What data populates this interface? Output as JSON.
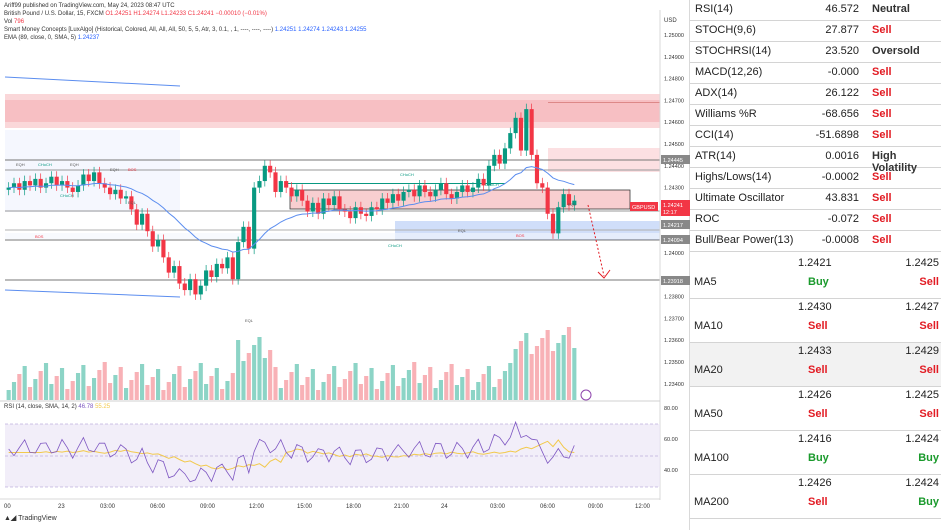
{
  "header": {
    "published": "Ariff99 published on TradingView.com, May 24, 2023 08:47 UTC",
    "symbol": "British Pound / U.S. Dollar, 15, FXCM",
    "ohlc": "O1.24251 H1.24274 L1.24233 C1.24241 −0.00010 (−0.01%)",
    "vol_label": "Vol",
    "vol_value": "796",
    "smc": "Smart Money Concepts [LuxAlgo] (Historical, Colored, All, All, All, 50, 5, 5, Atr, 3, 0.1, , 1, ----, ----, ----)",
    "smc_values": "1.24251  1.24274  1.24243  1.24255",
    "ema": "EMA (89, close, 0, SMA, 5)",
    "ema_value": "1.24237",
    "rsi": "RSI (14, close, SMA, 14, 2)",
    "rsi_value": "46.78",
    "rsi_value2": "55.25"
  },
  "axis": {
    "currency": "USD",
    "price_ticks": [
      "1.25000",
      "1.24900",
      "1.24800",
      "1.24700",
      "1.24600",
      "1.24500",
      "1.24400",
      "1.24300",
      "1.24200",
      "1.24000",
      "1.23800",
      "1.23700",
      "1.23600",
      "1.23500",
      "1.23400"
    ],
    "price_labels": [
      {
        "text": "1.24445",
        "kind": "gray"
      },
      {
        "text": "GBPUSD",
        "kind": "red"
      },
      {
        "text": "1.24241",
        "kind": "red"
      },
      {
        "text": "12:17",
        "kind": "red"
      },
      {
        "text": "1.24217",
        "kind": "gray"
      },
      {
        "text": "1.24094",
        "kind": "gray"
      },
      {
        "text": "1.23918",
        "kind": "gray"
      }
    ],
    "rsi_ticks": [
      "80.00",
      "60.00",
      "40.00"
    ],
    "time_ticks": [
      "00",
      "23",
      "03:00",
      "06:00",
      "09:00",
      "12:00",
      "15:00",
      "18:00",
      "21:00",
      "24",
      "03:00",
      "06:00",
      "09:00",
      "12:00"
    ]
  },
  "annotations": [
    "EQH",
    "CHoCH",
    "EQH",
    "BOS",
    "CHoCH",
    "EQH",
    "BOS",
    "EQL",
    "EQL",
    "CHoCH",
    "EQL",
    "BOS",
    "CHoCH",
    "CHoCH",
    "EQL"
  ],
  "tradingview_label": "TradingView",
  "indicators": [
    {
      "name": "RSI(14)",
      "value": "46.572",
      "action": "Neutral",
      "type": "neutral"
    },
    {
      "name": "STOCH(9,6)",
      "value": "27.877",
      "action": "Sell",
      "type": "sell"
    },
    {
      "name": "STOCHRSI(14)",
      "value": "23.520",
      "action": "Oversold",
      "type": "neutral"
    },
    {
      "name": "MACD(12,26)",
      "value": "-0.000",
      "action": "Sell",
      "type": "sell"
    },
    {
      "name": "ADX(14)",
      "value": "26.122",
      "action": "Sell",
      "type": "sell"
    },
    {
      "name": "Williams %R",
      "value": "-68.656",
      "action": "Sell",
      "type": "sell"
    },
    {
      "name": "CCI(14)",
      "value": "-51.6898",
      "action": "Sell",
      "type": "sell"
    },
    {
      "name": "ATR(14)",
      "value": "0.0016",
      "action": "High Volatility",
      "type": "neutral"
    },
    {
      "name": "Highs/Lows(14)",
      "value": "-0.0002",
      "action": "Sell",
      "type": "sell"
    },
    {
      "name": "Ultimate Oscillator",
      "value": "43.831",
      "action": "Sell",
      "type": "sell"
    },
    {
      "name": "ROC",
      "value": "-0.072",
      "action": "Sell",
      "type": "sell"
    },
    {
      "name": "Bull/Bear Power(13)",
      "value": "-0.0008",
      "action": "Sell",
      "type": "sell"
    }
  ],
  "moving_averages": [
    {
      "name": "MA5",
      "v1": "1.2421",
      "a1": "Buy",
      "t1": "buy",
      "v2": "1.2425",
      "a2": "Sell",
      "t2": "sell"
    },
    {
      "name": "MA10",
      "v1": "1.2430",
      "a1": "Sell",
      "t1": "sell",
      "v2": "1.2427",
      "a2": "Sell",
      "t2": "sell"
    },
    {
      "name": "MA20",
      "v1": "1.2433",
      "a1": "Sell",
      "t1": "sell",
      "v2": "1.2429",
      "a2": "Sell",
      "t2": "sell"
    },
    {
      "name": "MA50",
      "v1": "1.2426",
      "a1": "Sell",
      "t1": "sell",
      "v2": "1.2425",
      "a2": "Sell",
      "t2": "sell"
    },
    {
      "name": "MA100",
      "v1": "1.2416",
      "a1": "Buy",
      "t1": "buy",
      "v2": "1.2424",
      "a2": "Buy",
      "t2": "buy"
    },
    {
      "name": "MA200",
      "v1": "1.2426",
      "a1": "Sell",
      "t1": "sell",
      "v2": "1.2424",
      "a2": "Buy",
      "t2": "buy"
    }
  ]
}
